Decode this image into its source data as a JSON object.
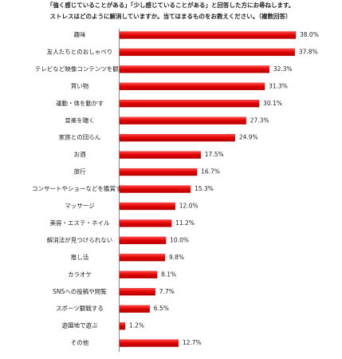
{
  "chart_data": {
    "type": "hbar",
    "title": "「強く感じていることがある」「少し感じていることがある」と回答した方にお尋ねします。",
    "subtitle": "ストレスはどのように解消していますか。当てはまるものをお教えください。（複数回答）",
    "categories": [
      "趣味",
      "友人たちとのおしゃべり",
      "テレビなど映像コンテンツを観る",
      "買い物",
      "運動・体を動かす",
      "音楽を聴く",
      "家族との団らん",
      "お酒",
      "旅行",
      "コンサートやショーなどを鑑賞する",
      "マッサージ",
      "美容・エステ・ネイル",
      "解消法が見つけられない",
      "推し活",
      "カラオケ",
      "SNSへの投稿や閲覧",
      "スポーツ観戦する",
      "遊園地で遊ぶ",
      "その他"
    ],
    "values": [
      38.0,
      37.8,
      32.3,
      31.3,
      30.1,
      27.3,
      24.9,
      17.5,
      16.7,
      15.3,
      12.0,
      11.2,
      10.0,
      9.8,
      8.1,
      7.7,
      6.5,
      1.2,
      12.7
    ],
    "value_labels": [
      "38.0%",
      "37.8%",
      "32.3%",
      "31.3%",
      "30.1%",
      "27.3%",
      "24.9%",
      "17.5%",
      "16.7%",
      "15.3%",
      "12.0%",
      "11.2%",
      "10.0%",
      "9.8%",
      "8.1%",
      "7.7%",
      "6.5%",
      "1.2%",
      "12.7%"
    ],
    "color": "#e00000"
  }
}
